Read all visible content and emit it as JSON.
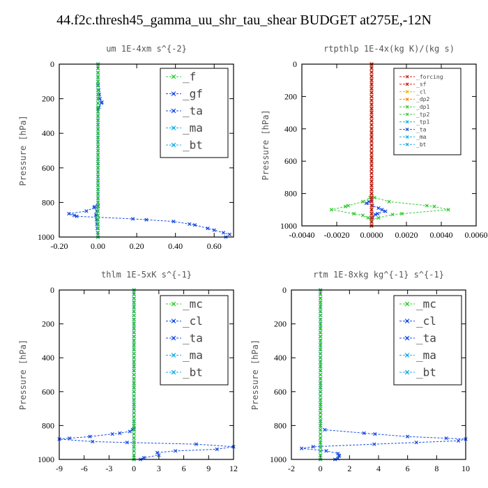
{
  "figure_title": "44.f2c.thresh45_gamma_uu_shr_tau_shear  BUDGET at275E,-12N",
  "colors": {
    "green": "#33cc33",
    "blue": "#1a4de6",
    "cyan": "#17aee6",
    "red": "#cc1a1a",
    "yellow": "#e6b800",
    "orange": "#ff8000"
  },
  "chart_data": [
    {
      "type": "line",
      "title": "um  1E-4xm s^{-2}",
      "ylabel": "Pressure [hPa]",
      "xlim": [
        -0.2,
        0.7
      ],
      "xticks": [
        -0.2,
        0,
        0.2,
        0.4,
        0.6
      ],
      "xtick_labels": [
        "-0.20",
        "0.00",
        "0.20",
        "0.40",
        "0.60"
      ],
      "ylim": [
        1000,
        0
      ],
      "yticks": [
        0,
        200,
        400,
        600,
        800,
        1000
      ],
      "legend_position": "top-right",
      "series": [
        {
          "name": "_f",
          "color": "#33cc33",
          "points": [
            [
              0.0,
              0
            ],
            [
              0.0,
              1000
            ]
          ]
        },
        {
          "name": "_gf",
          "color": "#1a4de6",
          "points": [
            [
              0.0,
              0
            ],
            [
              0.0,
              120
            ],
            [
              0.01,
              200
            ],
            [
              0.02,
              220
            ],
            [
              0.0,
              260
            ],
            [
              0.0,
              800
            ],
            [
              -0.02,
              830
            ],
            [
              -0.06,
              850
            ],
            [
              -0.15,
              865
            ],
            [
              -0.11,
              880
            ],
            [
              0.18,
              895
            ],
            [
              0.39,
              910
            ],
            [
              0.5,
              930
            ],
            [
              0.6,
              960
            ],
            [
              0.68,
              985
            ],
            [
              0.66,
              1000
            ]
          ]
        },
        {
          "name": "_ta",
          "color": "#1a4de6",
          "points": [
            [
              0.0,
              0
            ],
            [
              0.0,
              820
            ],
            [
              -0.01,
              870
            ],
            [
              0.0,
              1000
            ]
          ]
        },
        {
          "name": "_ma",
          "color": "#17aee6",
          "points": [
            [
              0.0,
              0
            ],
            [
              0.0,
              1000
            ]
          ]
        },
        {
          "name": "_bt",
          "color": "#17aee6",
          "points": [
            [
              0.0,
              0
            ],
            [
              0.0,
              1000
            ]
          ]
        }
      ]
    },
    {
      "type": "line",
      "title": "rtpthlp  1E-4x(kg K)/(kg s)",
      "ylabel": "Pressure [hPa]",
      "xlim": [
        -0.004,
        0.006
      ],
      "xticks": [
        -0.004,
        -0.002,
        0,
        0.002,
        0.004,
        0.006
      ],
      "xtick_labels": [
        "-0.0040",
        "-0.0020",
        "0.0000",
        "0.0020",
        "0.0040",
        "0.0060"
      ],
      "ylim": [
        1000,
        0
      ],
      "yticks": [
        0,
        200,
        400,
        600,
        800,
        1000
      ],
      "legend_position": "top-right",
      "series": [
        {
          "name": "_forcing",
          "color": "#cc1a1a",
          "points": [
            [
              0.0,
              0
            ],
            [
              0.0,
              1000
            ]
          ]
        },
        {
          "name": "_sf",
          "color": "#cc1a1a",
          "points": [
            [
              0.0,
              0
            ],
            [
              0.0,
              1000
            ]
          ]
        },
        {
          "name": "_cl",
          "color": "#e6b800",
          "points": [
            [
              0.0,
              0
            ],
            [
              0.0,
              1000
            ]
          ]
        },
        {
          "name": "_dp2",
          "color": "#ff8000",
          "points": [
            [
              0.0,
              0
            ],
            [
              0.0,
              1000
            ]
          ]
        },
        {
          "name": "_dp1",
          "color": "#33cc33",
          "points": [
            [
              0.0,
              0
            ],
            [
              0.0,
              820
            ],
            [
              -0.0005,
              850
            ],
            [
              -0.0015,
              880
            ],
            [
              -0.0023,
              900
            ],
            [
              -0.0005,
              935
            ],
            [
              0.0,
              960
            ],
            [
              0.0,
              1000
            ]
          ]
        },
        {
          "name": "_tp2",
          "color": "#33cc33",
          "points": [
            [
              0.0,
              0
            ],
            [
              0.0,
              820
            ],
            [
              0.001,
              850
            ],
            [
              0.0036,
              880
            ],
            [
              0.0044,
              900
            ],
            [
              0.0012,
              930
            ],
            [
              0.0,
              960
            ],
            [
              0.0,
              1000
            ]
          ]
        },
        {
          "name": "_tp1",
          "color": "#17aee6",
          "points": [
            [
              0.0,
              0
            ],
            [
              0.0,
              1000
            ]
          ]
        },
        {
          "name": "_ta",
          "color": "#1a4de6",
          "points": [
            [
              0.0,
              0
            ],
            [
              0.0,
              840
            ],
            [
              -0.0003,
              860
            ],
            [
              0.0004,
              890
            ],
            [
              0.0008,
              910
            ],
            [
              0.0002,
              930
            ],
            [
              0.0,
              960
            ],
            [
              0.0,
              1000
            ]
          ]
        },
        {
          "name": "_ma",
          "color": "#17aee6",
          "points": [
            [
              0.0,
              0
            ],
            [
              0.0,
              1000
            ]
          ]
        },
        {
          "name": "_bt",
          "color": "#17aee6",
          "points": [
            [
              0.0,
              0
            ],
            [
              0.0,
              1000
            ]
          ]
        }
      ]
    },
    {
      "type": "line",
      "title": "thlm  1E-5xK s^{-1}",
      "ylabel": "Pressure [hPa]",
      "xlim": [
        -9,
        12
      ],
      "xticks": [
        -9,
        -6,
        -3,
        0,
        3,
        6,
        9,
        12
      ],
      "xtick_labels": [
        "-9",
        "-6",
        "-3",
        "0",
        "3",
        "6",
        "9",
        "12"
      ],
      "ylim": [
        1000,
        0
      ],
      "yticks": [
        0,
        200,
        400,
        600,
        800,
        1000
      ],
      "legend_position": "top-right",
      "series": [
        {
          "name": "_mc",
          "color": "#33cc33",
          "points": [
            [
              0,
              0
            ],
            [
              0,
              1000
            ]
          ]
        },
        {
          "name": "_cl",
          "color": "#1a4de6",
          "points": [
            [
              0,
              0
            ],
            [
              0,
              820
            ],
            [
              -0.5,
              835
            ],
            [
              -1.7,
              845
            ],
            [
              -5.3,
              865
            ],
            [
              -9.0,
              880
            ],
            [
              -5.0,
              895
            ],
            [
              7.5,
              910
            ],
            [
              12.0,
              925
            ],
            [
              10.0,
              940
            ],
            [
              5.0,
              950
            ],
            [
              2.8,
              960
            ],
            [
              3.0,
              975
            ],
            [
              1.2,
              990
            ],
            [
              0.8,
              1000
            ]
          ]
        },
        {
          "name": "_ta",
          "color": "#1a4de6",
          "points": [
            [
              0,
              0
            ],
            [
              0,
              1000
            ]
          ]
        },
        {
          "name": "_ma",
          "color": "#17aee6",
          "points": [
            [
              0,
              0
            ],
            [
              0,
              1000
            ]
          ]
        },
        {
          "name": "_bt",
          "color": "#17aee6",
          "points": [
            [
              0,
              0
            ],
            [
              0,
              1000
            ]
          ]
        }
      ]
    },
    {
      "type": "line",
      "title": "rtm  1E-8xkg kg^{-1} s^{-1}",
      "ylabel": "Pressure [hPa]",
      "xlim": [
        -2,
        10
      ],
      "xticks": [
        -2,
        0,
        2,
        4,
        6,
        8,
        10
      ],
      "xtick_labels": [
        "-2",
        "0",
        "2",
        "4",
        "6",
        "8",
        "10"
      ],
      "ylim": [
        1000,
        0
      ],
      "yticks": [
        0,
        200,
        400,
        600,
        800,
        1000
      ],
      "legend_position": "top-right",
      "series": [
        {
          "name": "_mc",
          "color": "#33cc33",
          "points": [
            [
              0,
              0
            ],
            [
              0,
              1000
            ]
          ]
        },
        {
          "name": "_cl",
          "color": "#1a4de6",
          "points": [
            [
              0,
              0
            ],
            [
              0,
              800
            ],
            [
              0.3,
              825
            ],
            [
              3.0,
              845
            ],
            [
              6.0,
              865
            ],
            [
              10.0,
              880
            ],
            [
              9.5,
              890
            ],
            [
              3.7,
              910
            ],
            [
              -0.5,
              925
            ],
            [
              -1.3,
              935
            ],
            [
              0.4,
              950
            ],
            [
              1.2,
              965
            ],
            [
              1.3,
              980
            ],
            [
              1.2,
              995
            ],
            [
              1.0,
              1000
            ]
          ]
        },
        {
          "name": "_ta",
          "color": "#1a4de6",
          "points": [
            [
              0,
              0
            ],
            [
              0,
              1000
            ]
          ]
        },
        {
          "name": "_ma",
          "color": "#17aee6",
          "points": [
            [
              0,
              0
            ],
            [
              0,
              1000
            ]
          ]
        },
        {
          "name": "_bt",
          "color": "#17aee6",
          "points": [
            [
              0,
              0
            ],
            [
              0,
              1000
            ]
          ]
        }
      ]
    }
  ]
}
